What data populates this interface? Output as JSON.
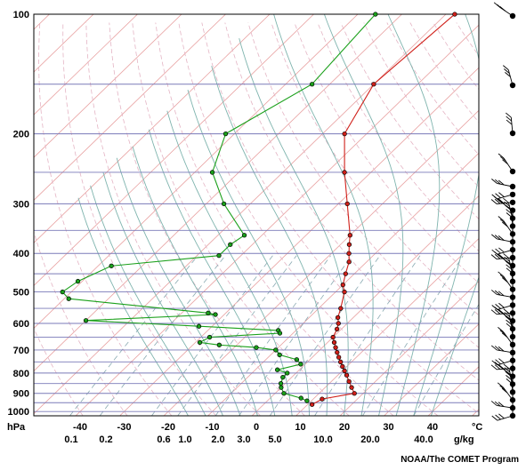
{
  "chart_data": {
    "type": "skew-t log-p sounding",
    "pressure_axis": {
      "unit_label": "hPa",
      "labeled_levels": [
        100,
        200,
        300,
        400,
        500,
        600,
        700,
        800,
        900,
        1000
      ],
      "plotted_levels": [
        100,
        150,
        200,
        250,
        300,
        350,
        400,
        450,
        500,
        550,
        600,
        650,
        700,
        750,
        800,
        850,
        900,
        950,
        1000
      ],
      "range": [
        1025,
        100
      ]
    },
    "temperature_axis": {
      "unit_label": "°C",
      "ticks": [
        -40,
        -30,
        -20,
        -10,
        0,
        10,
        20,
        30,
        40
      ]
    },
    "mixing_ratio_axis": {
      "unit_label": "g/kg",
      "ticks": [
        "0.1",
        "0.2",
        "0.6",
        "1.0",
        "2.0",
        "3.0",
        "5.0",
        "10.0",
        "20.0",
        "40.0"
      ]
    },
    "series": [
      {
        "kind": "temperature",
        "color": "#d0201a",
        "points": [
          {
            "p": 100,
            "t": -48
          },
          {
            "p": 150,
            "t": -50
          },
          {
            "p": 200,
            "t": -45
          },
          {
            "p": 250,
            "t": -36
          },
          {
            "p": 300,
            "t": -28
          },
          {
            "p": 360,
            "t": -20
          },
          {
            "p": 380,
            "t": -18
          },
          {
            "p": 400,
            "t": -16
          },
          {
            "p": 420,
            "t": -14
          },
          {
            "p": 450,
            "t": -12
          },
          {
            "p": 480,
            "t": -10
          },
          {
            "p": 500,
            "t": -8
          },
          {
            "p": 550,
            "t": -5
          },
          {
            "p": 580,
            "t": -3.5
          },
          {
            "p": 600,
            "t": -2
          },
          {
            "p": 620,
            "t": -1
          },
          {
            "p": 650,
            "t": 0
          },
          {
            "p": 670,
            "t": 1.5
          },
          {
            "p": 690,
            "t": 3
          },
          {
            "p": 710,
            "t": 4.5
          },
          {
            "p": 730,
            "t": 6
          },
          {
            "p": 750,
            "t": 7.5
          },
          {
            "p": 770,
            "t": 9
          },
          {
            "p": 790,
            "t": 10.5
          },
          {
            "p": 810,
            "t": 12
          },
          {
            "p": 840,
            "t": 14
          },
          {
            "p": 870,
            "t": 16
          },
          {
            "p": 900,
            "t": 18
          },
          {
            "p": 930,
            "t": 12
          },
          {
            "p": 960,
            "t": 11
          }
        ]
      },
      {
        "kind": "dewpoint",
        "color": "#1aa01a",
        "points": [
          {
            "p": 100,
            "t": -66
          },
          {
            "p": 150,
            "t": -64
          },
          {
            "p": 200,
            "t": -72
          },
          {
            "p": 250,
            "t": -66
          },
          {
            "p": 300,
            "t": -56
          },
          {
            "p": 360,
            "t": -44
          },
          {
            "p": 380,
            "t": -45
          },
          {
            "p": 405,
            "t": -45
          },
          {
            "p": 430,
            "t": -67
          },
          {
            "p": 470,
            "t": -71
          },
          {
            "p": 500,
            "t": -72
          },
          {
            "p": 520,
            "t": -69
          },
          {
            "p": 565,
            "t": -34
          },
          {
            "p": 570,
            "t": -32
          },
          {
            "p": 590,
            "t": -60
          },
          {
            "p": 610,
            "t": -33
          },
          {
            "p": 625,
            "t": -14
          },
          {
            "p": 635,
            "t": -13
          },
          {
            "p": 650,
            "t": -28
          },
          {
            "p": 670,
            "t": -29
          },
          {
            "p": 680,
            "t": -24
          },
          {
            "p": 690,
            "t": -15
          },
          {
            "p": 700,
            "t": -10
          },
          {
            "p": 720,
            "t": -8
          },
          {
            "p": 740,
            "t": -3
          },
          {
            "p": 760,
            "t": -1
          },
          {
            "p": 785,
            "t": -5
          },
          {
            "p": 800,
            "t": -2
          },
          {
            "p": 820,
            "t": -2
          },
          {
            "p": 850,
            "t": -1
          },
          {
            "p": 870,
            "t": 0
          },
          {
            "p": 900,
            "t": 2
          },
          {
            "p": 925,
            "t": 7
          },
          {
            "p": 940,
            "t": 9
          }
        ]
      }
    ],
    "wind_barbs": {
      "count": 34,
      "side": "right"
    },
    "credit": "NOAA/The COMET Program"
  },
  "colors": {
    "isobar": "#7a7ab8",
    "isotherm": "#e8a0a0",
    "dry_adiabat": "#e4b4c4",
    "moist_adiabat": "#7fb4ae",
    "mixing_ratio": "#8aaab2"
  }
}
